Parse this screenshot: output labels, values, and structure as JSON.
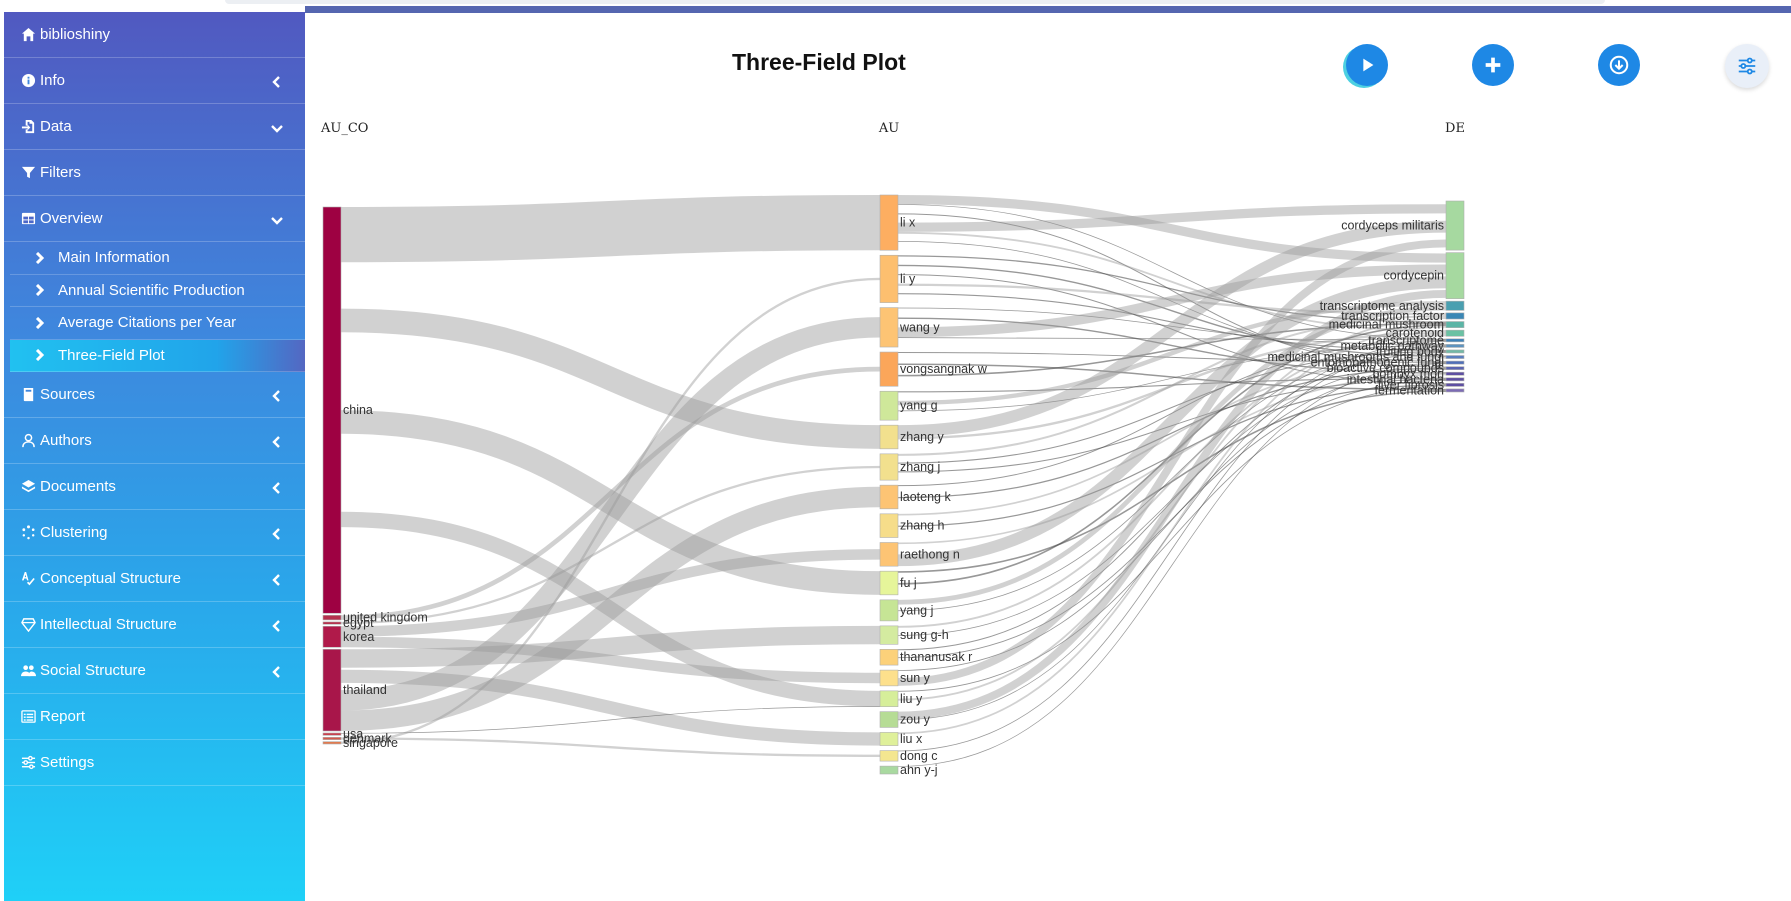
{
  "app": {
    "name": "biblioshiny"
  },
  "sidebar": {
    "items": [
      {
        "key": "home",
        "label": "biblioshiny",
        "icon": "home-icon",
        "chevron": ""
      },
      {
        "key": "info",
        "label": "Info",
        "icon": "info-icon",
        "chevron": "left"
      },
      {
        "key": "data",
        "label": "Data",
        "icon": "file-import-icon",
        "chevron": "down"
      },
      {
        "key": "filters",
        "label": "Filters",
        "icon": "filter-icon",
        "chevron": ""
      },
      {
        "key": "overview",
        "label": "Overview",
        "icon": "table-icon",
        "chevron": "down"
      },
      {
        "key": "sources",
        "label": "Sources",
        "icon": "book-icon",
        "chevron": "left"
      },
      {
        "key": "authors",
        "label": "Authors",
        "icon": "user-icon",
        "chevron": "left"
      },
      {
        "key": "documents",
        "label": "Documents",
        "icon": "layers-icon",
        "chevron": "left"
      },
      {
        "key": "clustering",
        "label": "Clustering",
        "icon": "spinner-icon",
        "chevron": "left"
      },
      {
        "key": "conceptual",
        "label": "Conceptual Structure",
        "icon": "spell-check-icon",
        "chevron": "left"
      },
      {
        "key": "intellectual",
        "label": "Intellectual Structure",
        "icon": "gem-icon",
        "chevron": "left"
      },
      {
        "key": "social",
        "label": "Social Structure",
        "icon": "users-icon",
        "chevron": "left"
      },
      {
        "key": "report",
        "label": "Report",
        "icon": "list-alt-icon",
        "chevron": ""
      },
      {
        "key": "settings",
        "label": "Settings",
        "icon": "sliders-icon",
        "chevron": ""
      }
    ],
    "overview_sub": [
      {
        "label": "Main Information",
        "active": false
      },
      {
        "label": "Annual Scientific Production",
        "active": false
      },
      {
        "label": "Average Citations per Year",
        "active": false
      },
      {
        "label": "Three-Field Plot",
        "active": true
      }
    ]
  },
  "header": {
    "title": "Three-Field Plot",
    "buttons": [
      {
        "name": "run-button",
        "icon": "play-icon"
      },
      {
        "name": "add-button",
        "icon": "plus-icon"
      },
      {
        "name": "download-button",
        "icon": "download-icon"
      },
      {
        "name": "options-button",
        "icon": "sliders-icon"
      }
    ]
  },
  "chart_data": {
    "type": "sankey",
    "fields": [
      "AU_CO",
      "AU",
      "DE"
    ],
    "nodes": {
      "AU_CO": [
        {
          "label": "china",
          "weight": 174,
          "color": "#9e0142"
        },
        {
          "label": "united kingdom",
          "weight": 2,
          "color": "#b5304d"
        },
        {
          "label": "egypt",
          "weight": 1,
          "color": "#b5304d"
        },
        {
          "label": "korea",
          "weight": 9,
          "color": "#b01a4a"
        },
        {
          "label": "thailand",
          "weight": 35,
          "color": "#a8164a"
        },
        {
          "label": "usa",
          "weight": 1,
          "color": "#c9424f"
        },
        {
          "label": "denmark",
          "weight": 1,
          "color": "#d35a4c"
        },
        {
          "label": "singapore",
          "weight": 1,
          "color": "#e07b4f"
        }
      ],
      "AU": [
        {
          "label": "li x",
          "weight": 21,
          "color": "#fdae61"
        },
        {
          "label": "li y",
          "weight": 18,
          "color": "#fdbf6f"
        },
        {
          "label": "wang y",
          "weight": 15,
          "color": "#fdc474"
        },
        {
          "label": "vongsangnak w",
          "weight": 13,
          "color": "#fba65a"
        },
        {
          "label": "yang g",
          "weight": 11,
          "color": "#cfe89a"
        },
        {
          "label": "zhang y",
          "weight": 9,
          "color": "#f2e08e"
        },
        {
          "label": "zhang j",
          "weight": 10,
          "color": "#f2e08e"
        },
        {
          "label": "laoteng k",
          "weight": 9,
          "color": "#fdc474"
        },
        {
          "label": "zhang h",
          "weight": 9,
          "color": "#f6dd8a"
        },
        {
          "label": "raethong n",
          "weight": 9,
          "color": "#fdc474"
        },
        {
          "label": "fu j",
          "weight": 9,
          "color": "#e6f59a"
        },
        {
          "label": "yang j",
          "weight": 8,
          "color": "#c6e595"
        },
        {
          "label": "sung g-h",
          "weight": 7,
          "color": "#d4eba0"
        },
        {
          "label": "thananusak r",
          "weight": 6,
          "color": "#fcd17a"
        },
        {
          "label": "sun y",
          "weight": 6,
          "color": "#fde08c"
        },
        {
          "label": "liu y",
          "weight": 6,
          "color": "#d6ee9a"
        },
        {
          "label": "zou y",
          "weight": 6,
          "color": "#b6dc95"
        },
        {
          "label": "liu x",
          "weight": 5,
          "color": "#dff09a"
        },
        {
          "label": "dong c",
          "weight": 4,
          "color": "#f4e690"
        },
        {
          "label": "ahn y-j",
          "weight": 3,
          "color": "#a9d9a0"
        }
      ],
      "DE": [
        {
          "label": "cordyceps militaris",
          "weight": 16,
          "color": "#a6d9a0"
        },
        {
          "label": "cordycepin",
          "weight": 15,
          "color": "#a6d9a0"
        },
        {
          "label": "transcriptome analysis",
          "weight": 3,
          "color": "#4a9fb0"
        },
        {
          "label": "transcription factor",
          "weight": 2,
          "color": "#3a87b5"
        },
        {
          "label": "medicinal mushroom",
          "weight": 2,
          "color": "#5bb5a6"
        },
        {
          "label": "carotenoid",
          "weight": 2,
          "color": "#6bc1a3"
        },
        {
          "label": "transcriptome",
          "weight": 1,
          "color": "#3f82b9"
        },
        {
          "label": "metabolic pathway",
          "weight": 1,
          "color": "#5e93bf"
        },
        {
          "label": "fruiting body",
          "weight": 1,
          "color": "#72b9a6"
        },
        {
          "label": "medicinal mushrooms and fungi",
          "weight": 1,
          "color": "#5a7fbf"
        },
        {
          "label": "entomopathogenic fungi",
          "weight": 1,
          "color": "#4f6fb8"
        },
        {
          "label": "bioactive compounds",
          "weight": 1,
          "color": "#5b64b0"
        },
        {
          "label": "bombyx mori",
          "weight": 1,
          "color": "#5e4fa2"
        },
        {
          "label": "intestinal bacteria",
          "weight": 1,
          "color": "#5e4fa2"
        },
        {
          "label": "liver fibrosis",
          "weight": 1,
          "color": "#5e4fa2"
        },
        {
          "label": "fermentation",
          "weight": 1,
          "color": "#7c6bb4"
        }
      ]
    },
    "link_color": "#9a9a9a"
  }
}
